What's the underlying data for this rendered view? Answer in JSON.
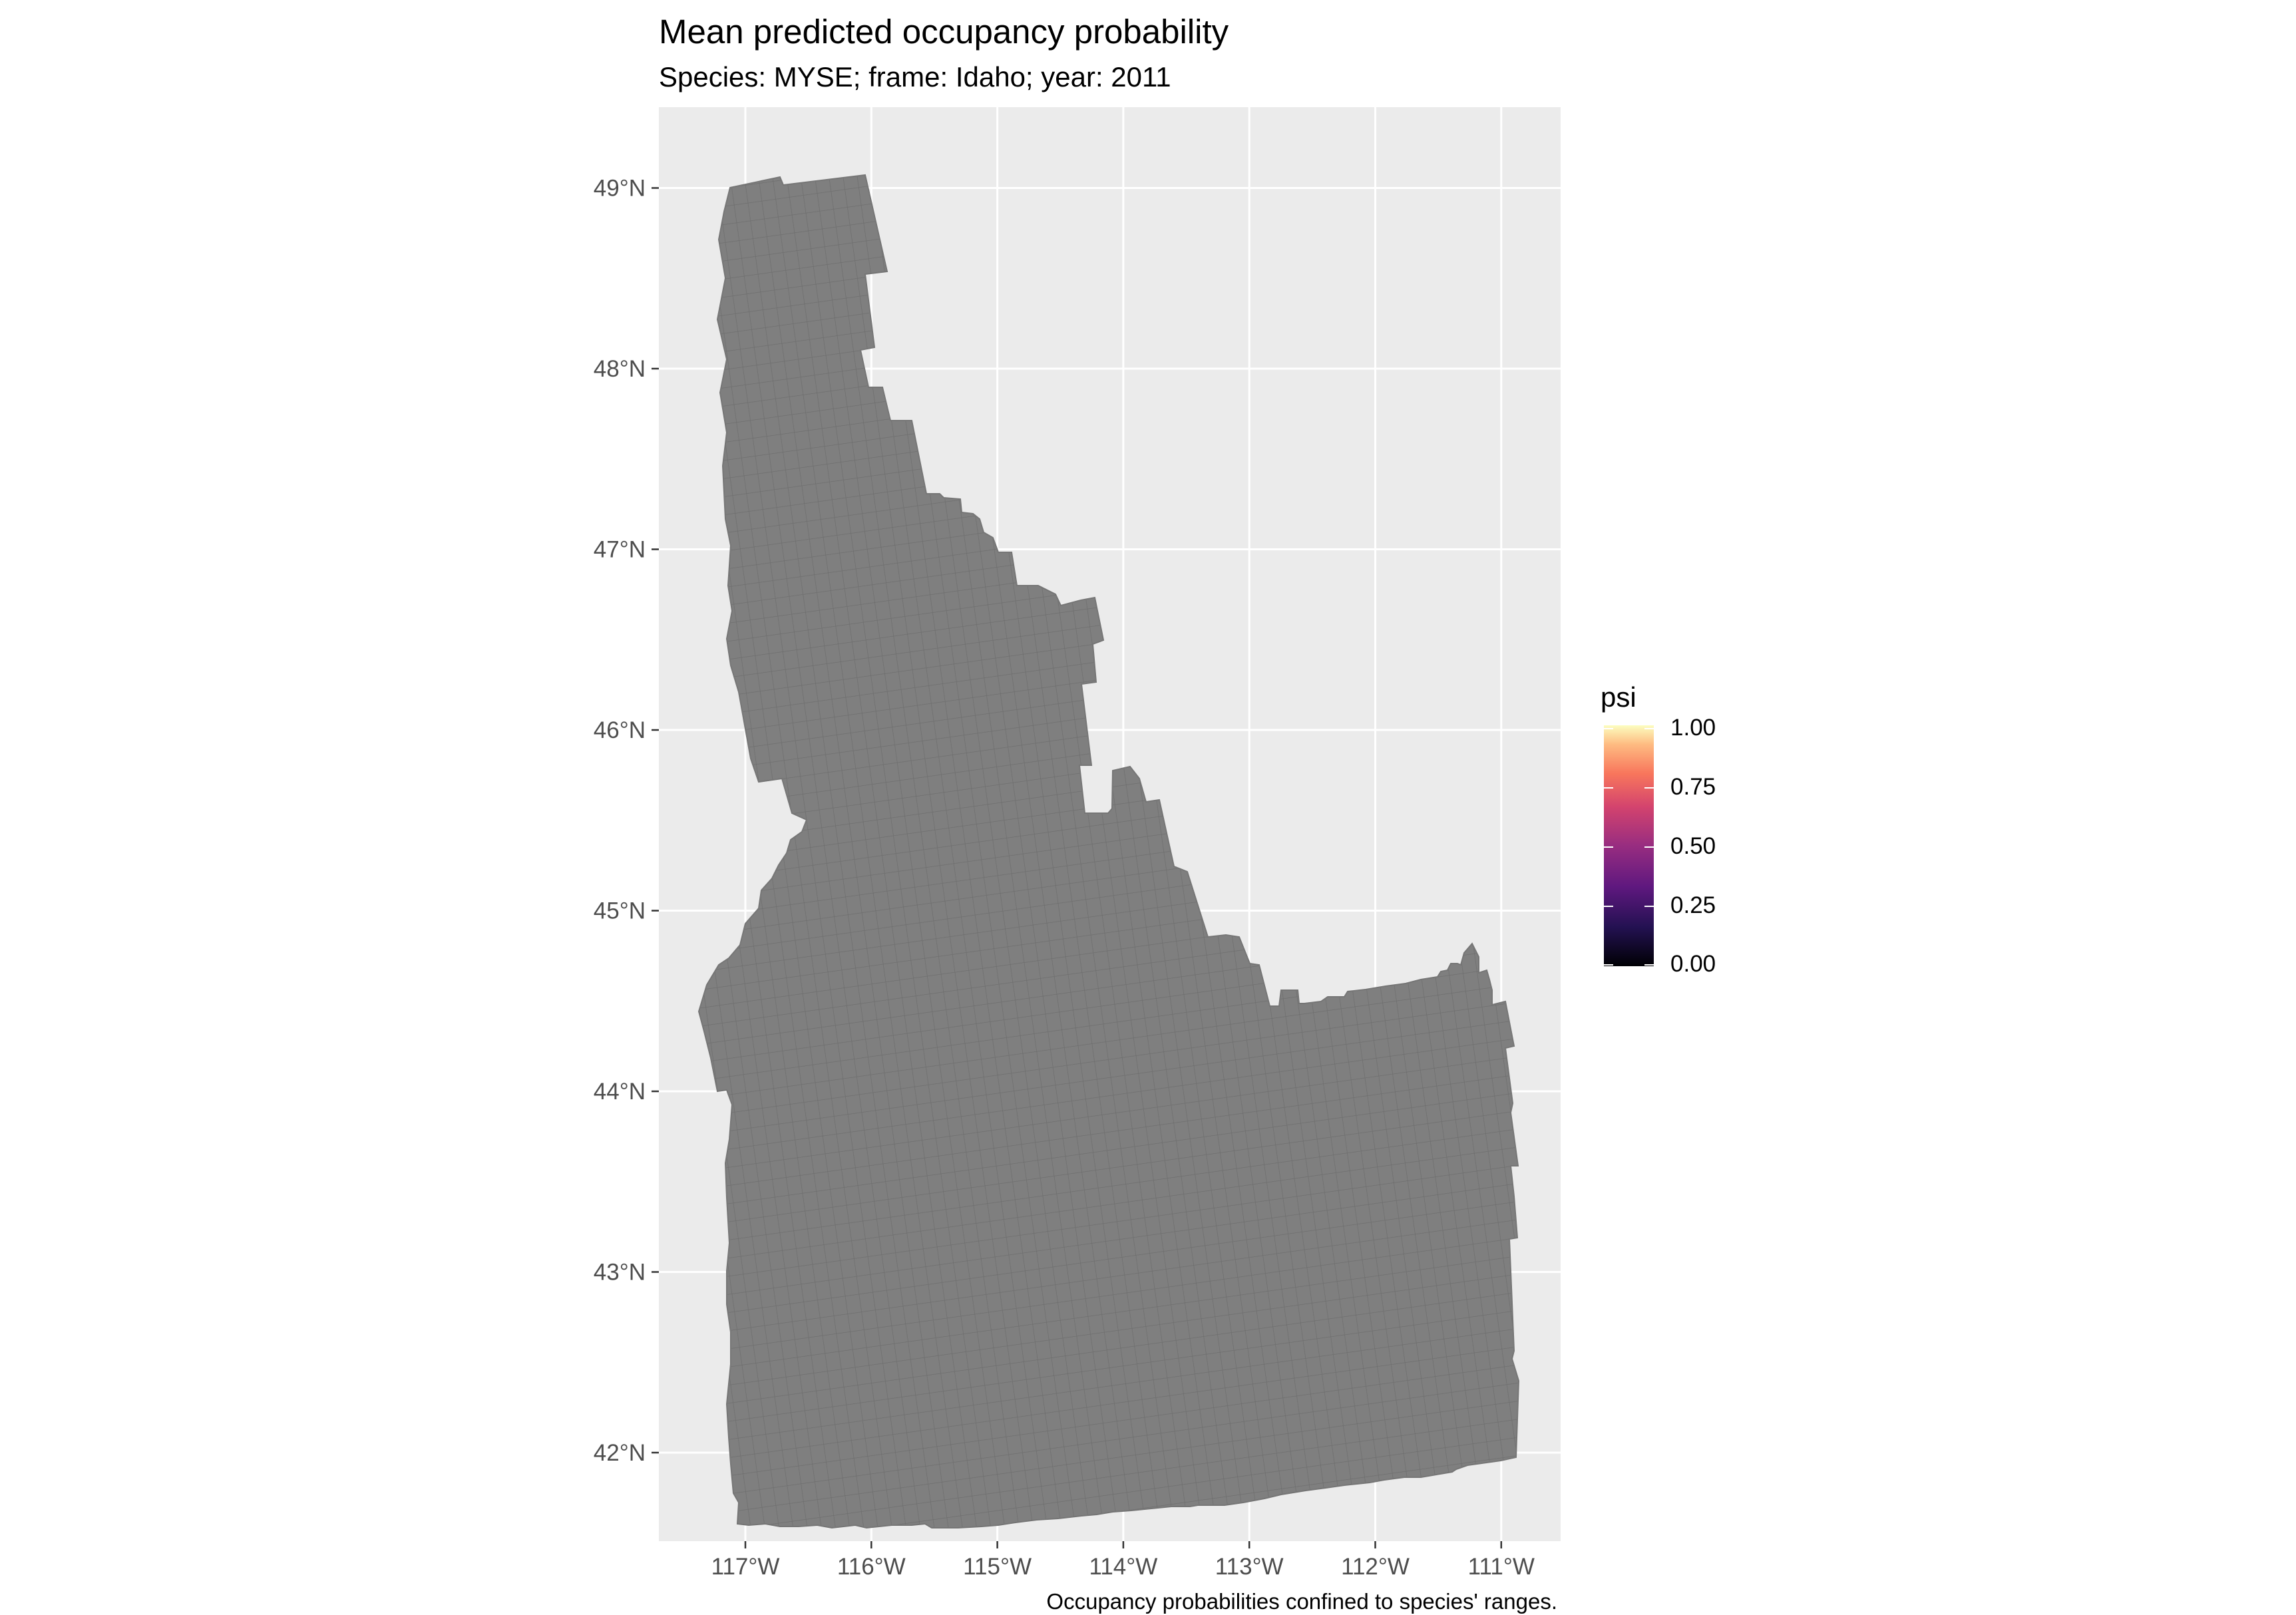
{
  "title": "Mean predicted occupancy probability",
  "subtitle": "Species: MYSE; frame: Idaho; year: 2011",
  "caption": "Occupancy probabilities confined to species' ranges.",
  "map": {
    "region": "Idaho",
    "fill_color": "#7f7f7f",
    "panel_color": "#ebebeb",
    "grid_color": "#ffffff",
    "lon_ticks": [
      {
        "value": -117,
        "label": "117°W"
      },
      {
        "value": -116,
        "label": "116°W"
      },
      {
        "value": -115,
        "label": "115°W"
      },
      {
        "value": -114,
        "label": "114°W"
      },
      {
        "value": -113,
        "label": "113°W"
      },
      {
        "value": -112,
        "label": "112°W"
      },
      {
        "value": -111,
        "label": "111°W"
      }
    ],
    "lat_ticks": [
      {
        "value": 49,
        "label": "49°N"
      },
      {
        "value": 48,
        "label": "48°N"
      },
      {
        "value": 47,
        "label": "47°N"
      },
      {
        "value": 46,
        "label": "46°N"
      },
      {
        "value": 45,
        "label": "45°N"
      },
      {
        "value": 44,
        "label": "44°N"
      },
      {
        "value": 43,
        "label": "43°N"
      },
      {
        "value": 42,
        "label": "42°N"
      }
    ]
  },
  "legend": {
    "title": "psi",
    "colormap": "magma",
    "range": [
      0,
      1
    ],
    "labels": [
      "1.00",
      "0.75",
      "0.50",
      "0.25",
      "0.00"
    ]
  }
}
